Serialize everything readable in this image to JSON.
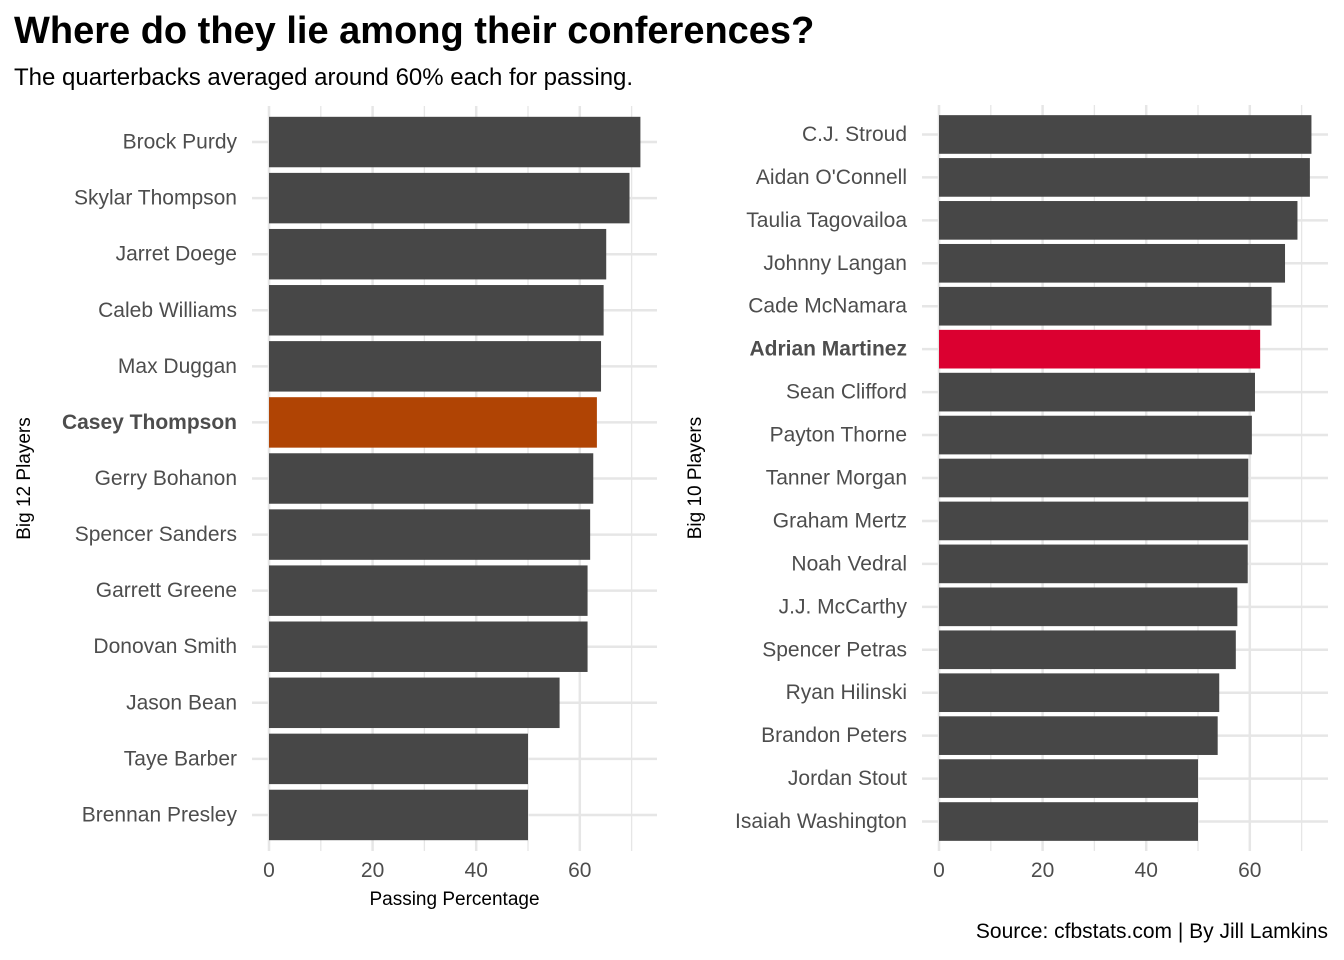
{
  "title": "Where do they lie among their conferences?",
  "subtitle": "The quarterbacks averaged around 60% each for passing.",
  "caption": "Source: cfbstats.com | By Jill Lamkins",
  "colors": {
    "bar": "#474747",
    "big12_highlight": "#b04404",
    "big10_highlight": "#db0030",
    "grid": "#e6e6e6"
  },
  "chart_data": [
    {
      "type": "bar",
      "orientation": "horizontal",
      "xlabel": "Passing Percentage",
      "ylabel": "Big 12 Players",
      "xlim": [
        0,
        75
      ],
      "xticks": [
        0,
        20,
        40,
        60
      ],
      "grid": true,
      "highlight": "Casey Thompson",
      "categories": [
        "Brock Purdy",
        "Skylar Thompson",
        "Jarret Doege",
        "Caleb Williams",
        "Max Duggan",
        "Casey Thompson",
        "Gerry Bohanon",
        "Spencer Sanders",
        "Garrett Greene",
        "Donovan Smith",
        "Jason Bean",
        "Taye Barber",
        "Brennan Presley"
      ],
      "values": [
        71.7,
        69.6,
        65.1,
        64.6,
        64.1,
        63.3,
        62.6,
        62.0,
        61.5,
        61.5,
        56.1,
        50.0,
        50.0
      ]
    },
    {
      "type": "bar",
      "orientation": "horizontal",
      "xlabel": "",
      "ylabel": "Big 10 Players",
      "xlim": [
        0,
        75
      ],
      "xticks": [
        0,
        20,
        40,
        60
      ],
      "grid": true,
      "highlight": "Adrian Martinez",
      "categories": [
        "C.J. Stroud",
        "Aidan O'Connell",
        "Taulia Tagovailoa",
        "Johnny Langan",
        "Cade McNamara",
        "Adrian Martinez",
        "Sean Clifford",
        "Payton Thorne",
        "Tanner Morgan",
        "Graham Mertz",
        "Noah Vedral",
        "J.J. McCarthy",
        "Spencer Petras",
        "Ryan Hilinski",
        "Brandon Peters",
        "Jordan Stout",
        "Isaiah Washington"
      ],
      "values": [
        71.9,
        71.6,
        69.2,
        66.8,
        64.2,
        62.0,
        61.0,
        60.4,
        59.7,
        59.7,
        59.6,
        57.6,
        57.3,
        54.1,
        53.8,
        50.0,
        50.0
      ]
    }
  ]
}
